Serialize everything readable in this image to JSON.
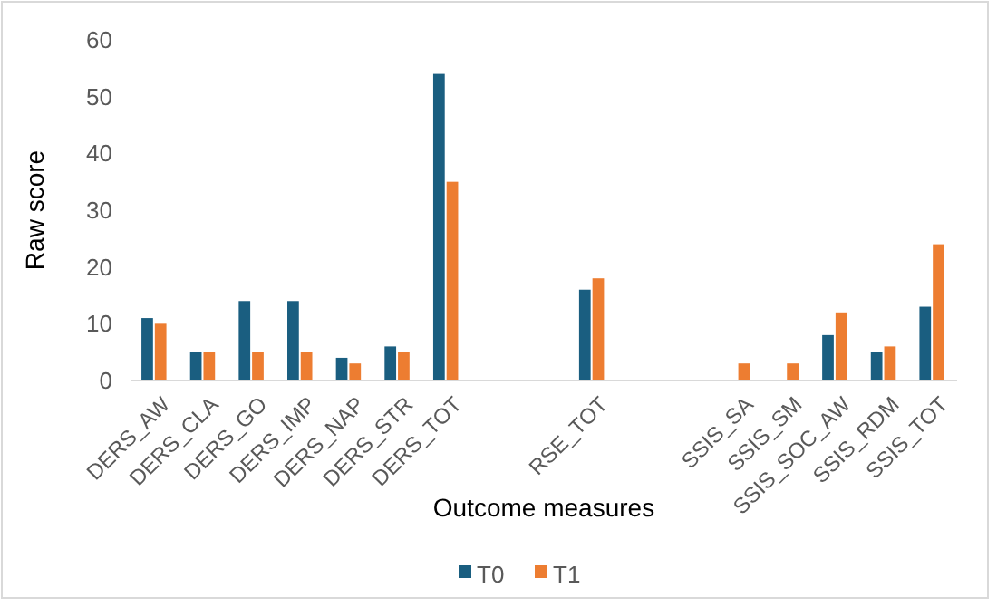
{
  "chart_data": {
    "type": "bar",
    "xlabel": "Outcome measures",
    "ylabel": "Raw score",
    "categories": [
      "DERS_AW",
      "DERS_CLA",
      "DERS_GO",
      "DERS_IMP",
      "DERS_NAP",
      "DERS_STR",
      "DERS_TOT",
      null,
      null,
      "RSE_TOT",
      null,
      null,
      "SSIS_SA",
      "SSIS_SM",
      "SSIS_SOC_AW",
      "SSIS_RDM",
      "SSIS_TOT"
    ],
    "series": [
      {
        "name": "T0",
        "color": "#1a5e80",
        "values": [
          11,
          5,
          14,
          14,
          4,
          6,
          54,
          null,
          null,
          16,
          null,
          null,
          null,
          null,
          8,
          5,
          13
        ]
      },
      {
        "name": "T1",
        "color": "#ed7d31",
        "values": [
          10,
          5,
          5,
          5,
          3,
          5,
          35,
          null,
          null,
          18,
          null,
          null,
          3,
          3,
          12,
          6,
          24
        ]
      }
    ],
    "ylim": [
      0,
      60
    ],
    "yticks": [
      0,
      10,
      20,
      30,
      40,
      50,
      60
    ],
    "grid": false,
    "legend": "bottom"
  }
}
